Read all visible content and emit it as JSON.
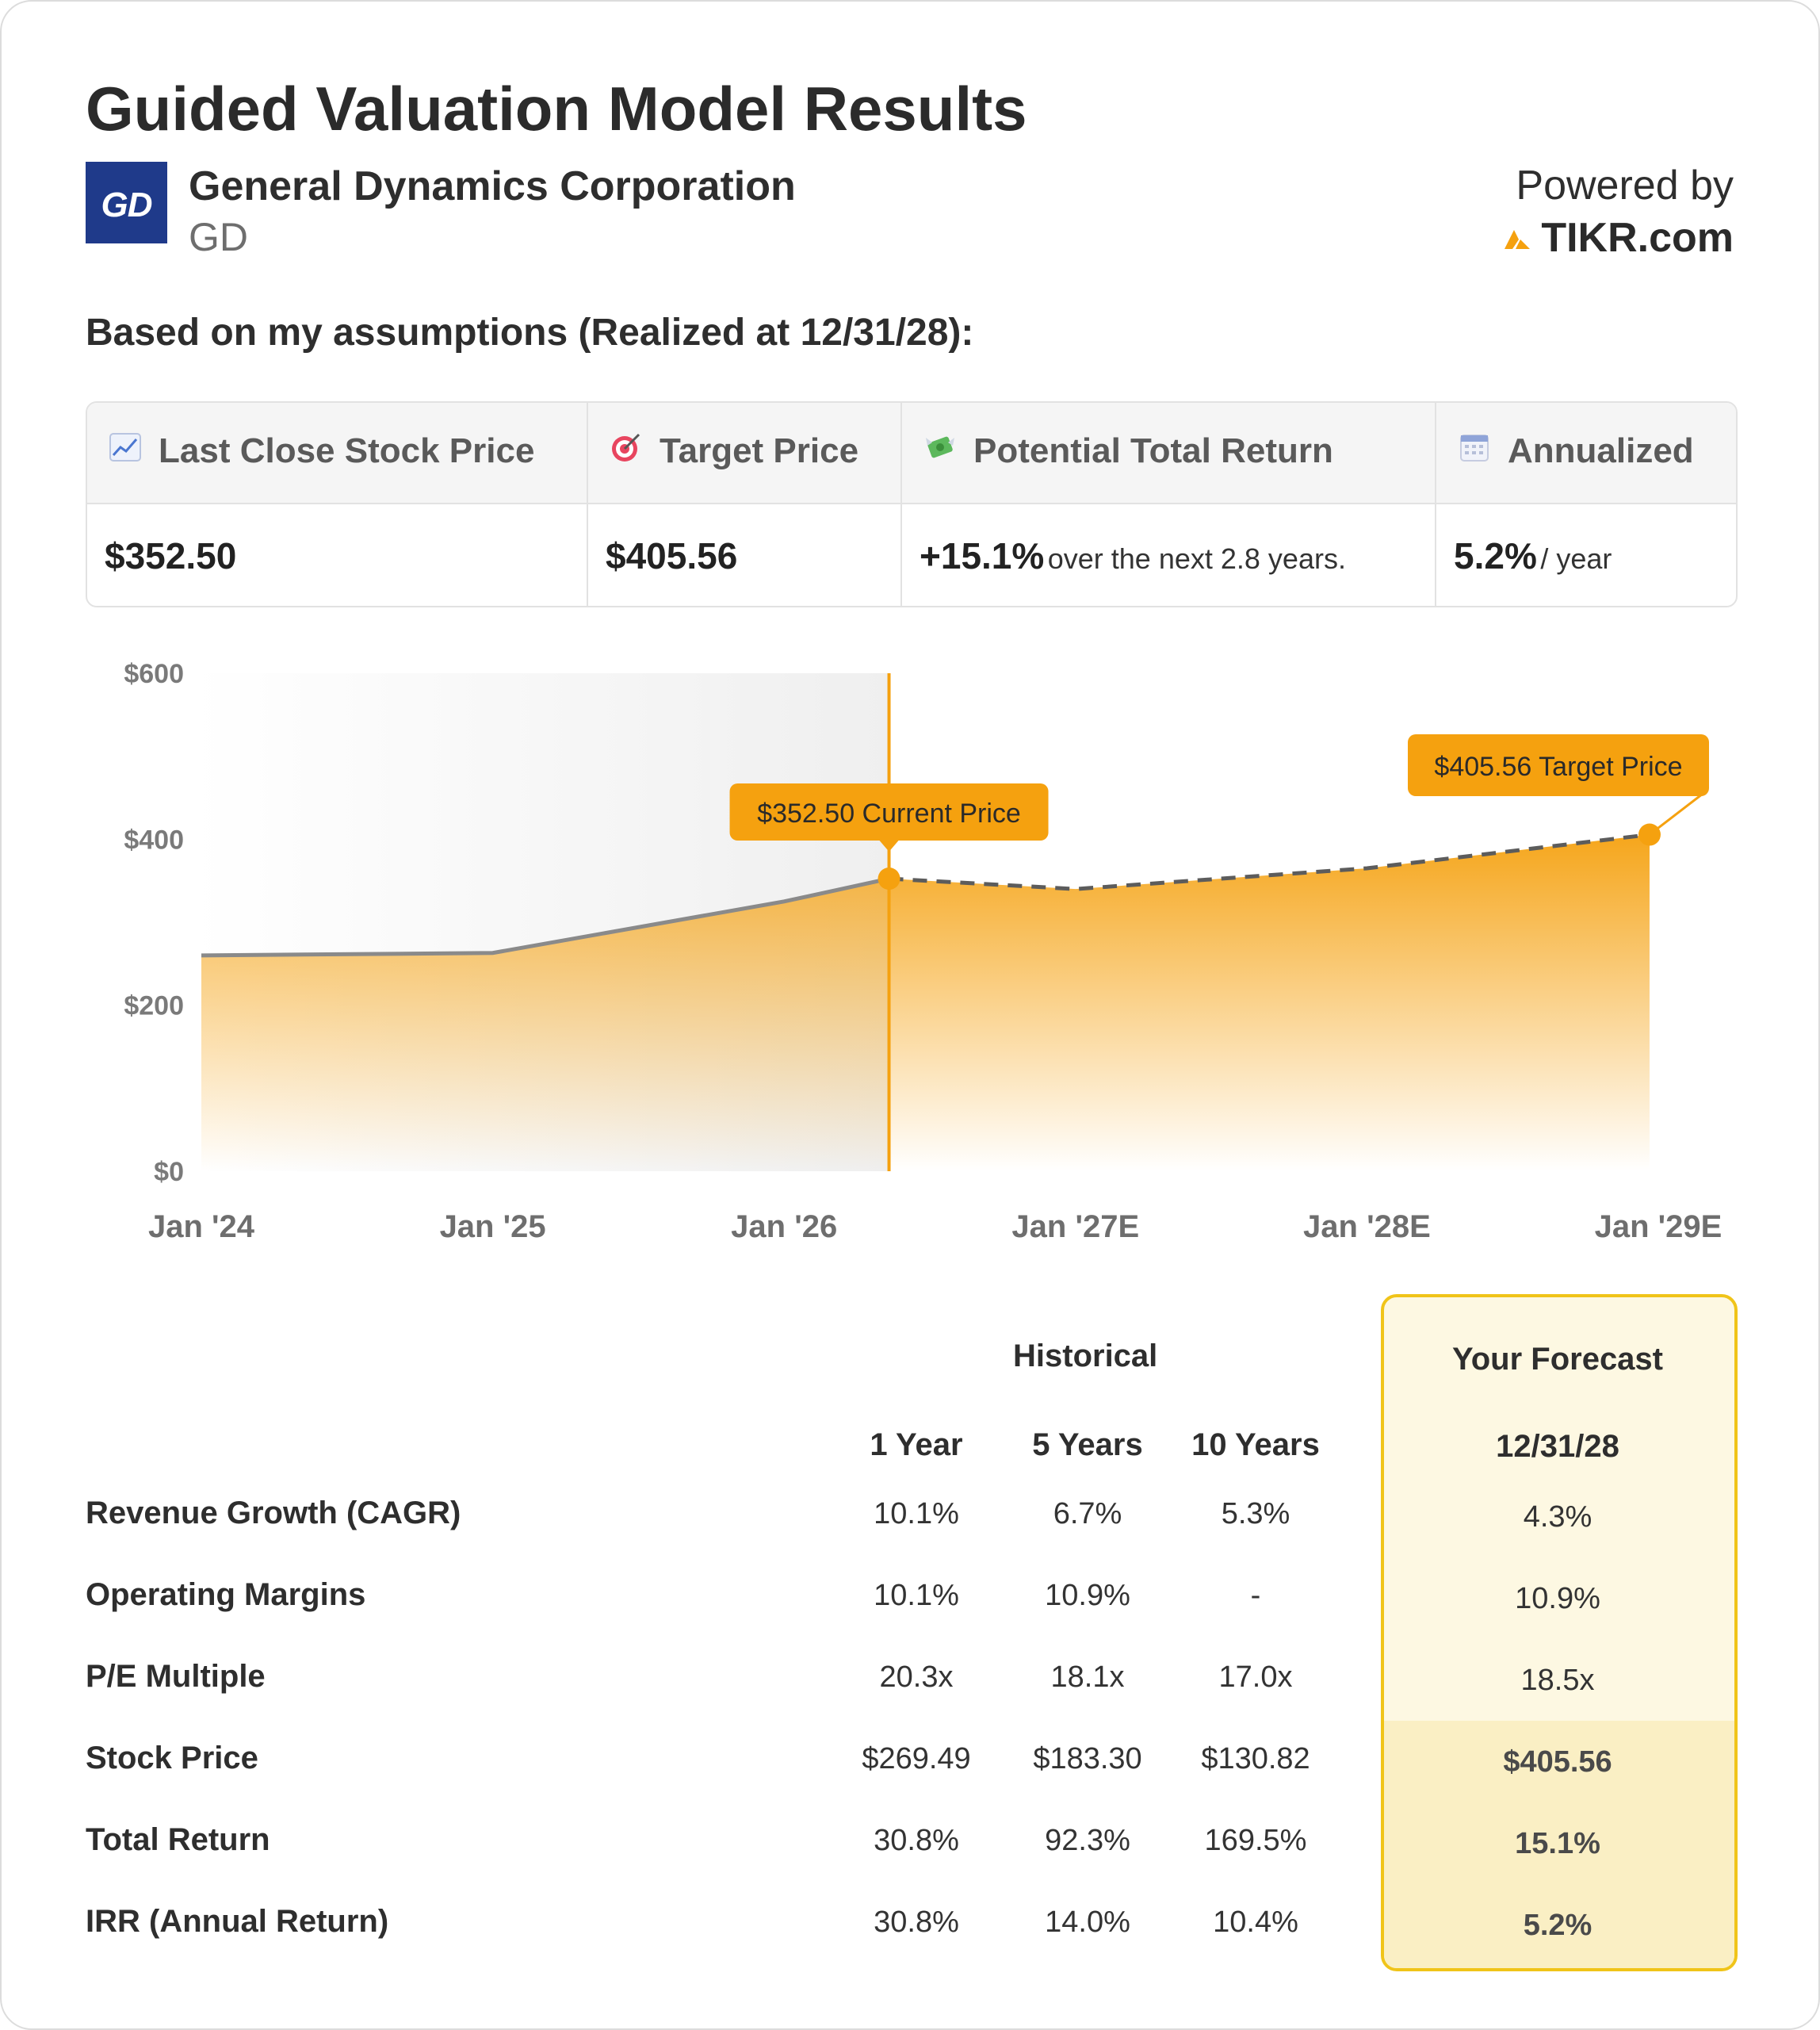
{
  "header": {
    "title": "Guided Valuation Model Results",
    "company_name": "General Dynamics Corporation",
    "ticker": "GD",
    "logo_text": "GD",
    "powered_by": "Powered by",
    "brand": "TIKR.com"
  },
  "assumptions_heading": "Based on my assumptions (Realized at 12/31/28):",
  "summary": {
    "last_close": {
      "icon": "chart-increasing-icon",
      "label": "Last Close Stock Price",
      "value": "$352.50"
    },
    "target": {
      "icon": "target-icon",
      "label": "Target Price",
      "value": "$405.56"
    },
    "total_return": {
      "icon": "money-with-wings-icon",
      "label": "Potential Total Return",
      "value": "+15.1%",
      "suffix": "over the next 2.8 years."
    },
    "annualized": {
      "icon": "calendar-icon",
      "label": "Annualized",
      "value": "5.2%",
      "suffix": "/ year"
    }
  },
  "chart_data": {
    "type": "area",
    "x_tick_labels": [
      "Jan '24",
      "Jan '25",
      "Jan '26",
      "Jan '27E",
      "Jan '28E",
      "Jan '29E"
    ],
    "y_tick_labels": [
      "$0",
      "$200",
      "$400",
      "$600"
    ],
    "ylim": [
      0,
      600
    ],
    "historical": {
      "x": [
        2024.0,
        2025.0,
        2026.0,
        2026.36
      ],
      "y": [
        260,
        263,
        325,
        352.5
      ]
    },
    "forecast": {
      "x": [
        2026.36,
        2027.0,
        2028.0,
        2028.97
      ],
      "y": [
        352.5,
        340,
        365,
        405.56
      ]
    },
    "current_price": {
      "x": 2026.36,
      "y": 352.5,
      "label": "$352.50 Current Price"
    },
    "target_price": {
      "x": 2028.97,
      "y": 405.56,
      "label": "$405.56 Target Price"
    },
    "colors": {
      "accent": "#f5a10f",
      "line": "#8a8a8a",
      "dashed": "#5c5c5c"
    }
  },
  "table": {
    "historical_header": "Historical",
    "forecast_header": "Your Forecast",
    "columns": [
      "1 Year",
      "5 Years",
      "10 Years"
    ],
    "forecast_date": "12/31/28",
    "rows": [
      {
        "label": "Revenue Growth (CAGR)",
        "values": [
          "10.1%",
          "6.7%",
          "5.3%"
        ],
        "forecast": "4.3%"
      },
      {
        "label": "Operating Margins",
        "values": [
          "10.1%",
          "10.9%",
          "-"
        ],
        "forecast": "10.9%"
      },
      {
        "label": "P/E Multiple",
        "values": [
          "20.3x",
          "18.1x",
          "17.0x"
        ],
        "forecast": "18.5x"
      },
      {
        "label": "Stock Price",
        "values": [
          "$269.49",
          "$183.30",
          "$130.82"
        ],
        "forecast": "$405.56"
      },
      {
        "label": "Total Return",
        "values": [
          "30.8%",
          "92.3%",
          "169.5%"
        ],
        "forecast": "15.1%"
      },
      {
        "label": "IRR (Annual Return)",
        "values": [
          "30.8%",
          "14.0%",
          "10.4%"
        ],
        "forecast": "5.2%"
      }
    ]
  }
}
